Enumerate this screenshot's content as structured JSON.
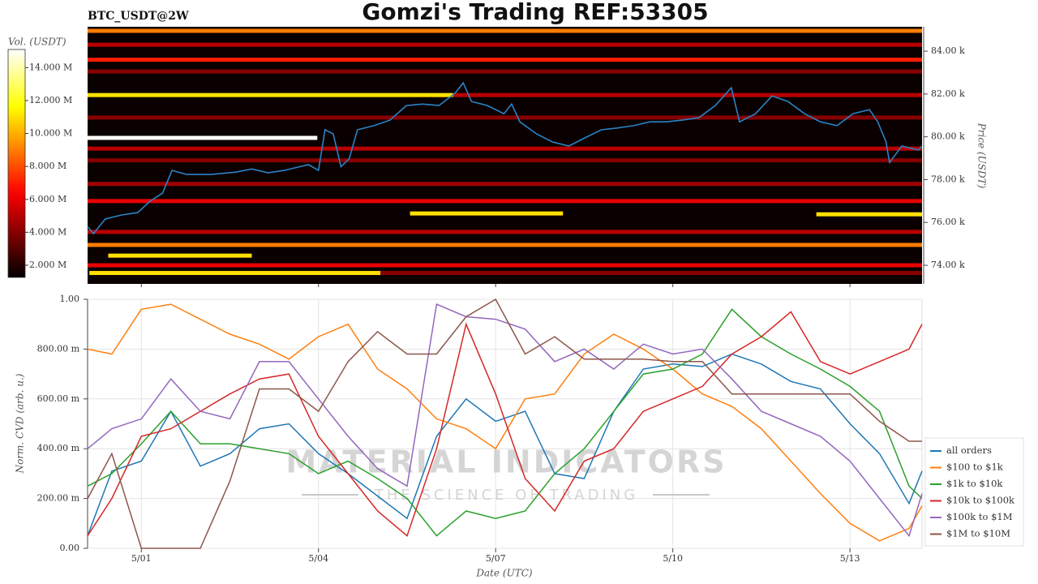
{
  "chart_data": [
    {
      "type": "heatmap",
      "title": "Gomzi's Trading REF:53305",
      "subtitle": "BTC_USDT@2W",
      "ylabel": "Price (USDT)",
      "clabel": "Vol. (USDT)",
      "colormap": "hot",
      "xlim": [
        0.09,
        14.22
      ],
      "xticks": [
        {
          "value": 1,
          "label": "5/01"
        },
        {
          "value": 4,
          "label": "5/04"
        },
        {
          "value": 7,
          "label": "5/07"
        },
        {
          "value": 10,
          "label": "5/10"
        },
        {
          "value": 13,
          "label": "5/13"
        }
      ],
      "ylim": [
        73130,
        85140
      ],
      "yticks": [
        {
          "value": 74000,
          "label": "74.00 k"
        },
        {
          "value": 76000,
          "label": "76.00 k"
        },
        {
          "value": 78000,
          "label": "78.00 k"
        },
        {
          "value": 80000,
          "label": "80.00 k"
        },
        {
          "value": 82000,
          "label": "82.00 k"
        },
        {
          "value": 84000,
          "label": "84.00 k"
        }
      ],
      "clim": [
        1260000,
        15100000
      ],
      "cticks": [
        {
          "value": 2000000,
          "label": "2.000 M"
        },
        {
          "value": 4000000,
          "label": "4.000 M"
        },
        {
          "value": 6000000,
          "label": "6.000 M"
        },
        {
          "value": 8000000,
          "label": "8.000 M"
        },
        {
          "value": 10000000,
          "label": "10.000 M"
        },
        {
          "value": 12000000,
          "label": "12.000 M"
        },
        {
          "value": 14000000,
          "label": "14.000 M"
        }
      ],
      "bands": [
        {
          "price": 84950,
          "start": 0.09,
          "end": 14.22,
          "volume": 9000000
        },
        {
          "price": 84300,
          "start": 0.09,
          "end": 14.22,
          "volume": 5000000
        },
        {
          "price": 83600,
          "start": 0.09,
          "end": 14.22,
          "volume": 7000000
        },
        {
          "price": 83050,
          "start": 0.09,
          "end": 14.22,
          "volume": 4000000
        },
        {
          "price": 81950,
          "start": 0.09,
          "end": 6.28,
          "volume": 11000000
        },
        {
          "price": 81950,
          "start": 6.28,
          "end": 14.22,
          "volume": 5000000
        },
        {
          "price": 80900,
          "start": 0.09,
          "end": 14.22,
          "volume": 4000000
        },
        {
          "price": 79950,
          "start": 0.09,
          "end": 3.98,
          "volume": 15000000
        },
        {
          "price": 79450,
          "start": 0.09,
          "end": 14.22,
          "volume": 5000000
        },
        {
          "price": 78900,
          "start": 0.09,
          "end": 14.22,
          "volume": 4000000
        },
        {
          "price": 77800,
          "start": 0.09,
          "end": 14.22,
          "volume": 4500000
        },
        {
          "price": 77000,
          "start": 0.09,
          "end": 14.22,
          "volume": 6000000
        },
        {
          "price": 76420,
          "start": 5.55,
          "end": 8.14,
          "volume": 11000000
        },
        {
          "price": 76380,
          "start": 12.43,
          "end": 14.22,
          "volume": 11000000
        },
        {
          "price": 75560,
          "start": 0.09,
          "end": 14.22,
          "volume": 5000000
        },
        {
          "price": 74950,
          "start": 0.09,
          "end": 14.22,
          "volume": 9000000
        },
        {
          "price": 74450,
          "start": 0.44,
          "end": 2.87,
          "volume": 11000000
        },
        {
          "price": 74000,
          "start": 0.09,
          "end": 14.22,
          "volume": 6000000
        },
        {
          "price": 73640,
          "start": 0.12,
          "end": 5.05,
          "volume": 11000000
        },
        {
          "price": 73640,
          "start": 5.05,
          "end": 14.22,
          "volume": 4000000
        }
      ],
      "color": "#2b83c6",
      "x": [
        0.09,
        0.19,
        0.39,
        0.67,
        0.94,
        1.15,
        1.36,
        1.52,
        1.77,
        2.18,
        2.6,
        2.87,
        3.15,
        3.42,
        3.83,
        4.0,
        4.11,
        4.25,
        4.38,
        4.52,
        4.66,
        4.94,
        5.21,
        5.49,
        5.76,
        6.04,
        6.31,
        6.45,
        6.59,
        6.86,
        7.14,
        7.27,
        7.41,
        7.69,
        7.96,
        8.24,
        8.51,
        8.79,
        9.06,
        9.34,
        9.61,
        9.89,
        10.16,
        10.44,
        10.72,
        10.99,
        11.13,
        11.4,
        11.68,
        11.95,
        12.23,
        12.5,
        12.78,
        13.05,
        13.33,
        13.47,
        13.61,
        13.67,
        13.88,
        14.16,
        14.22
      ],
      "values": [
        75800,
        75480,
        76160,
        76350,
        76460,
        77000,
        77370,
        78430,
        78240,
        78240,
        78350,
        78500,
        78320,
        78430,
        78700,
        78430,
        80330,
        80140,
        78600,
        78980,
        80330,
        80520,
        80780,
        81460,
        81530,
        81460,
        82030,
        82520,
        81650,
        81460,
        81080,
        81530,
        80700,
        80140,
        79760,
        79570,
        79950,
        80330,
        80410,
        80520,
        80700,
        80700,
        80780,
        80890,
        81460,
        82290,
        80700,
        81080,
        81910,
        81650,
        81080,
        80700,
        80520,
        81080,
        81270,
        80700,
        79760,
        78800,
        79570,
        79380,
        79570
      ]
    },
    {
      "type": "line",
      "ylabel": "Norm. CVD (arb. u.)",
      "xlabel": "Date (UTC)",
      "grid": true,
      "legend": "right",
      "annotations": [
        "MATERIAL INDICATORS",
        "THE SCIENCE OF TRADING"
      ],
      "xlim": [
        0.09,
        14.22
      ],
      "xticks": [
        {
          "value": 1,
          "label": "5/01"
        },
        {
          "value": 4,
          "label": "5/04"
        },
        {
          "value": 7,
          "label": "5/07"
        },
        {
          "value": 10,
          "label": "5/10"
        },
        {
          "value": 13,
          "label": "5/13"
        }
      ],
      "ylim": [
        0,
        1
      ],
      "yticks": [
        {
          "value": 0,
          "label": "0.00"
        },
        {
          "value": 0.2,
          "label": "200.00 m"
        },
        {
          "value": 0.4,
          "label": "400.00 m"
        },
        {
          "value": 0.6,
          "label": "600.00 m"
        },
        {
          "value": 0.8,
          "label": "800.00 m"
        },
        {
          "value": 1,
          "label": "1.00"
        }
      ],
      "x": [
        0.09,
        0.5,
        1,
        1.5,
        2,
        2.5,
        3,
        3.5,
        4,
        4.5,
        5,
        5.5,
        6,
        6.5,
        7,
        7.5,
        8,
        8.5,
        9,
        9.5,
        10,
        10.5,
        11,
        11.5,
        12,
        12.5,
        13,
        13.5,
        14,
        14.22
      ],
      "series": [
        {
          "name": "all orders",
          "color": "#1f77b4",
          "values": [
            0.05,
            0.31,
            0.35,
            0.55,
            0.33,
            0.38,
            0.48,
            0.5,
            0.38,
            0.3,
            0.21,
            0.12,
            0.45,
            0.6,
            0.51,
            0.55,
            0.3,
            0.28,
            0.55,
            0.72,
            0.74,
            0.73,
            0.78,
            0.74,
            0.67,
            0.64,
            0.5,
            0.38,
            0.18,
            0.31
          ]
        },
        {
          "name": "$100 to $1k",
          "color": "#ff7f0e",
          "values": [
            0.8,
            0.78,
            0.96,
            0.98,
            0.92,
            0.86,
            0.82,
            0.76,
            0.85,
            0.9,
            0.72,
            0.64,
            0.52,
            0.48,
            0.4,
            0.6,
            0.62,
            0.78,
            0.86,
            0.8,
            0.72,
            0.62,
            0.57,
            0.48,
            0.35,
            0.22,
            0.1,
            0.03,
            0.08,
            0.17
          ]
        },
        {
          "name": "$1k to $10k",
          "color": "#2ca02c",
          "values": [
            0.25,
            0.3,
            0.42,
            0.55,
            0.42,
            0.42,
            0.4,
            0.38,
            0.3,
            0.35,
            0.28,
            0.2,
            0.05,
            0.15,
            0.12,
            0.15,
            0.3,
            0.4,
            0.55,
            0.7,
            0.72,
            0.78,
            0.96,
            0.85,
            0.78,
            0.72,
            0.65,
            0.55,
            0.25,
            0.2
          ]
        },
        {
          "name": "$10k to $100k",
          "color": "#d62728",
          "values": [
            0.05,
            0.2,
            0.45,
            0.48,
            0.55,
            0.62,
            0.68,
            0.7,
            0.45,
            0.3,
            0.15,
            0.05,
            0.4,
            0.9,
            0.62,
            0.28,
            0.15,
            0.35,
            0.4,
            0.55,
            0.6,
            0.65,
            0.78,
            0.85,
            0.95,
            0.75,
            0.7,
            0.75,
            0.8,
            0.9
          ]
        },
        {
          "name": "$100k to $1M",
          "color": "#9467bd",
          "values": [
            0.4,
            0.48,
            0.52,
            0.68,
            0.55,
            0.52,
            0.75,
            0.75,
            0.6,
            0.45,
            0.32,
            0.25,
            0.98,
            0.93,
            0.92,
            0.88,
            0.75,
            0.8,
            0.72,
            0.82,
            0.78,
            0.8,
            0.68,
            0.55,
            0.5,
            0.45,
            0.35,
            0.2,
            0.05,
            0.22
          ]
        },
        {
          "name": "$1M to $10M",
          "color": "#8c564b",
          "values": [
            0.2,
            0.38,
            0.0,
            0.0,
            0.0,
            0.27,
            0.64,
            0.64,
            0.55,
            0.75,
            0.87,
            0.78,
            0.78,
            0.93,
            1.0,
            0.78,
            0.85,
            0.76,
            0.76,
            0.76,
            0.75,
            0.75,
            0.62,
            0.62,
            0.62,
            0.62,
            0.62,
            0.51,
            0.43,
            0.43
          ]
        }
      ]
    }
  ]
}
